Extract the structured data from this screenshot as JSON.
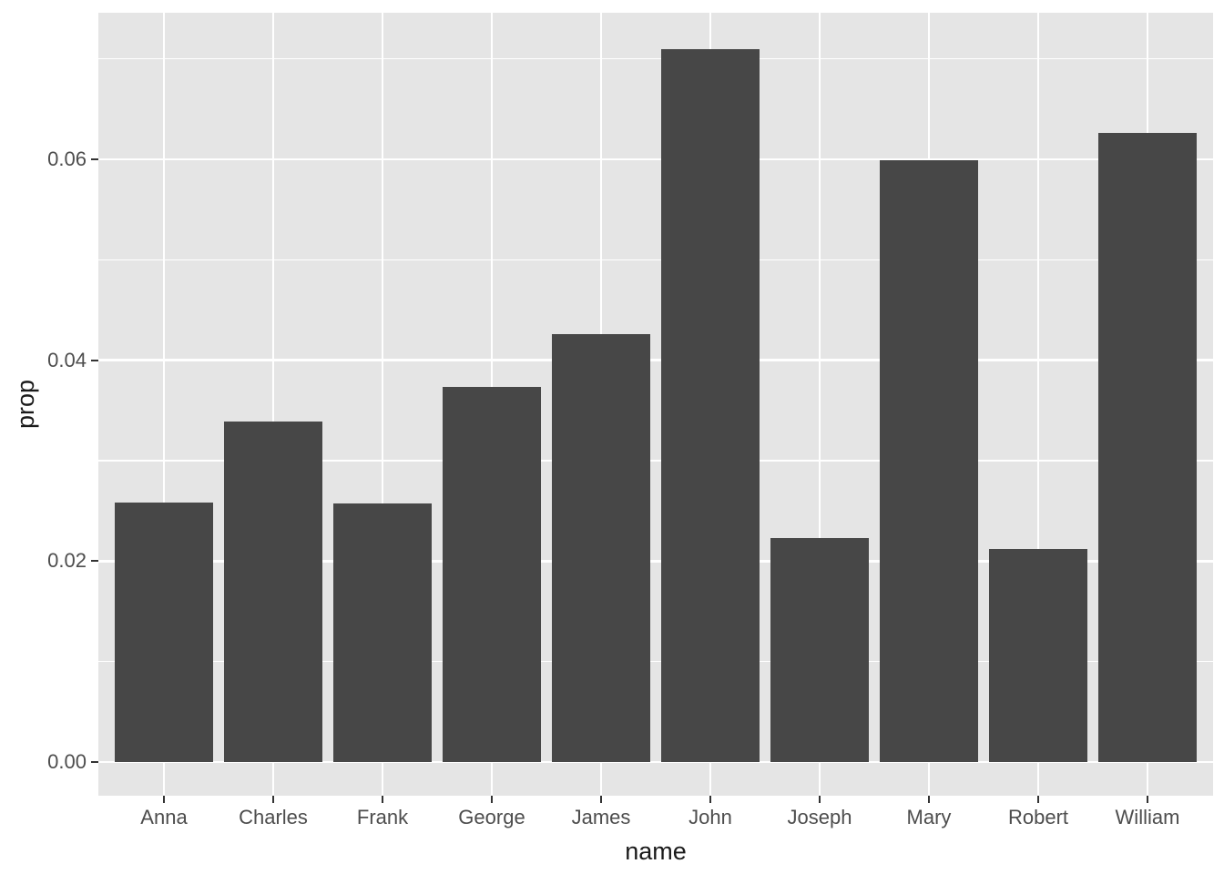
{
  "chart_data": {
    "type": "bar",
    "title": "",
    "xlabel": "name",
    "ylabel": "prop",
    "categories": [
      "Anna",
      "Charles",
      "Frank",
      "George",
      "James",
      "John",
      "Joseph",
      "Mary",
      "Robert",
      "William"
    ],
    "values": [
      0.0258,
      0.0339,
      0.0257,
      0.0373,
      0.0426,
      0.071,
      0.0223,
      0.0599,
      0.0212,
      0.0626
    ],
    "y_axis": {
      "tick_labels": [
        "0.00",
        "0.02",
        "0.04",
        "0.06"
      ],
      "tick_values": [
        0,
        0.02,
        0.04,
        0.06
      ],
      "minor_tick_values": [
        0.01,
        0.03,
        0.05,
        0.07
      ],
      "range": [
        -0.00336,
        0.0746
      ]
    },
    "x_axis": {
      "tick_labels": [
        "Anna",
        "Charles",
        "Frank",
        "George",
        "James",
        "John",
        "Joseph",
        "Mary",
        "Robert",
        "William"
      ]
    },
    "grid": true,
    "legend": false,
    "bar_width_fraction": 0.9,
    "style": {
      "bar_color": "#474747",
      "panel_background": "#E5E5E5",
      "grid_color": "#FFFFFF",
      "axis_text_color": "#4D4D4D",
      "axis_title_color": "#1A1A1A",
      "tick_mark_color": "#333333",
      "figure_background": "#FFFFFF"
    }
  }
}
